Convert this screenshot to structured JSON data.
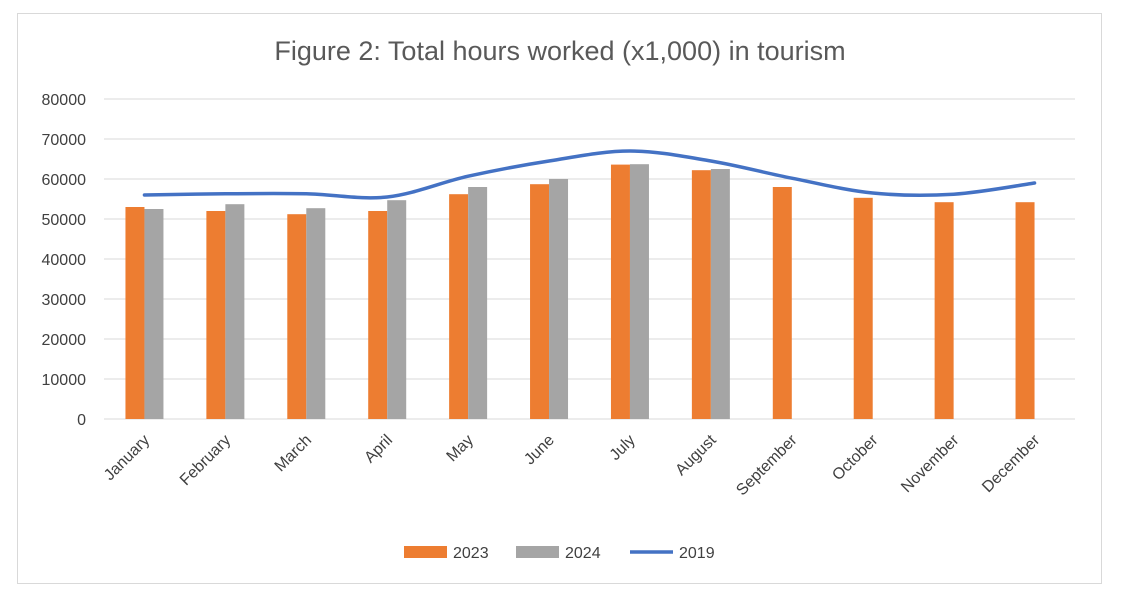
{
  "chart_data": {
    "type": "bar",
    "title": "Figure 2: Total hours worked (x1,000) in tourism",
    "xlabel": "",
    "ylabel": "",
    "ylim": [
      0,
      80000
    ],
    "yticks": [
      0,
      10000,
      20000,
      30000,
      40000,
      50000,
      60000,
      70000,
      80000
    ],
    "grid": true,
    "legend_position": "bottom",
    "categories": [
      "January",
      "February",
      "March",
      "April",
      "May",
      "June",
      "July",
      "August",
      "September",
      "October",
      "November",
      "December"
    ],
    "series": [
      {
        "name": "2023",
        "type": "bar",
        "color": "#ED7D31",
        "values": [
          53000,
          52000,
          51200,
          52000,
          56200,
          58700,
          63600,
          62200,
          58000,
          55300,
          54200,
          54200
        ]
      },
      {
        "name": "2024",
        "type": "bar",
        "color": "#A5A5A5",
        "values": [
          52500,
          53700,
          52700,
          54700,
          58000,
          60000,
          63700,
          62500,
          null,
          null,
          null,
          null
        ]
      },
      {
        "name": "2019",
        "type": "line",
        "color": "#4472C4",
        "values": [
          56000,
          56300,
          56300,
          55500,
          60700,
          64500,
          67000,
          64500,
          60200,
          56500,
          56200,
          59000
        ]
      }
    ]
  }
}
